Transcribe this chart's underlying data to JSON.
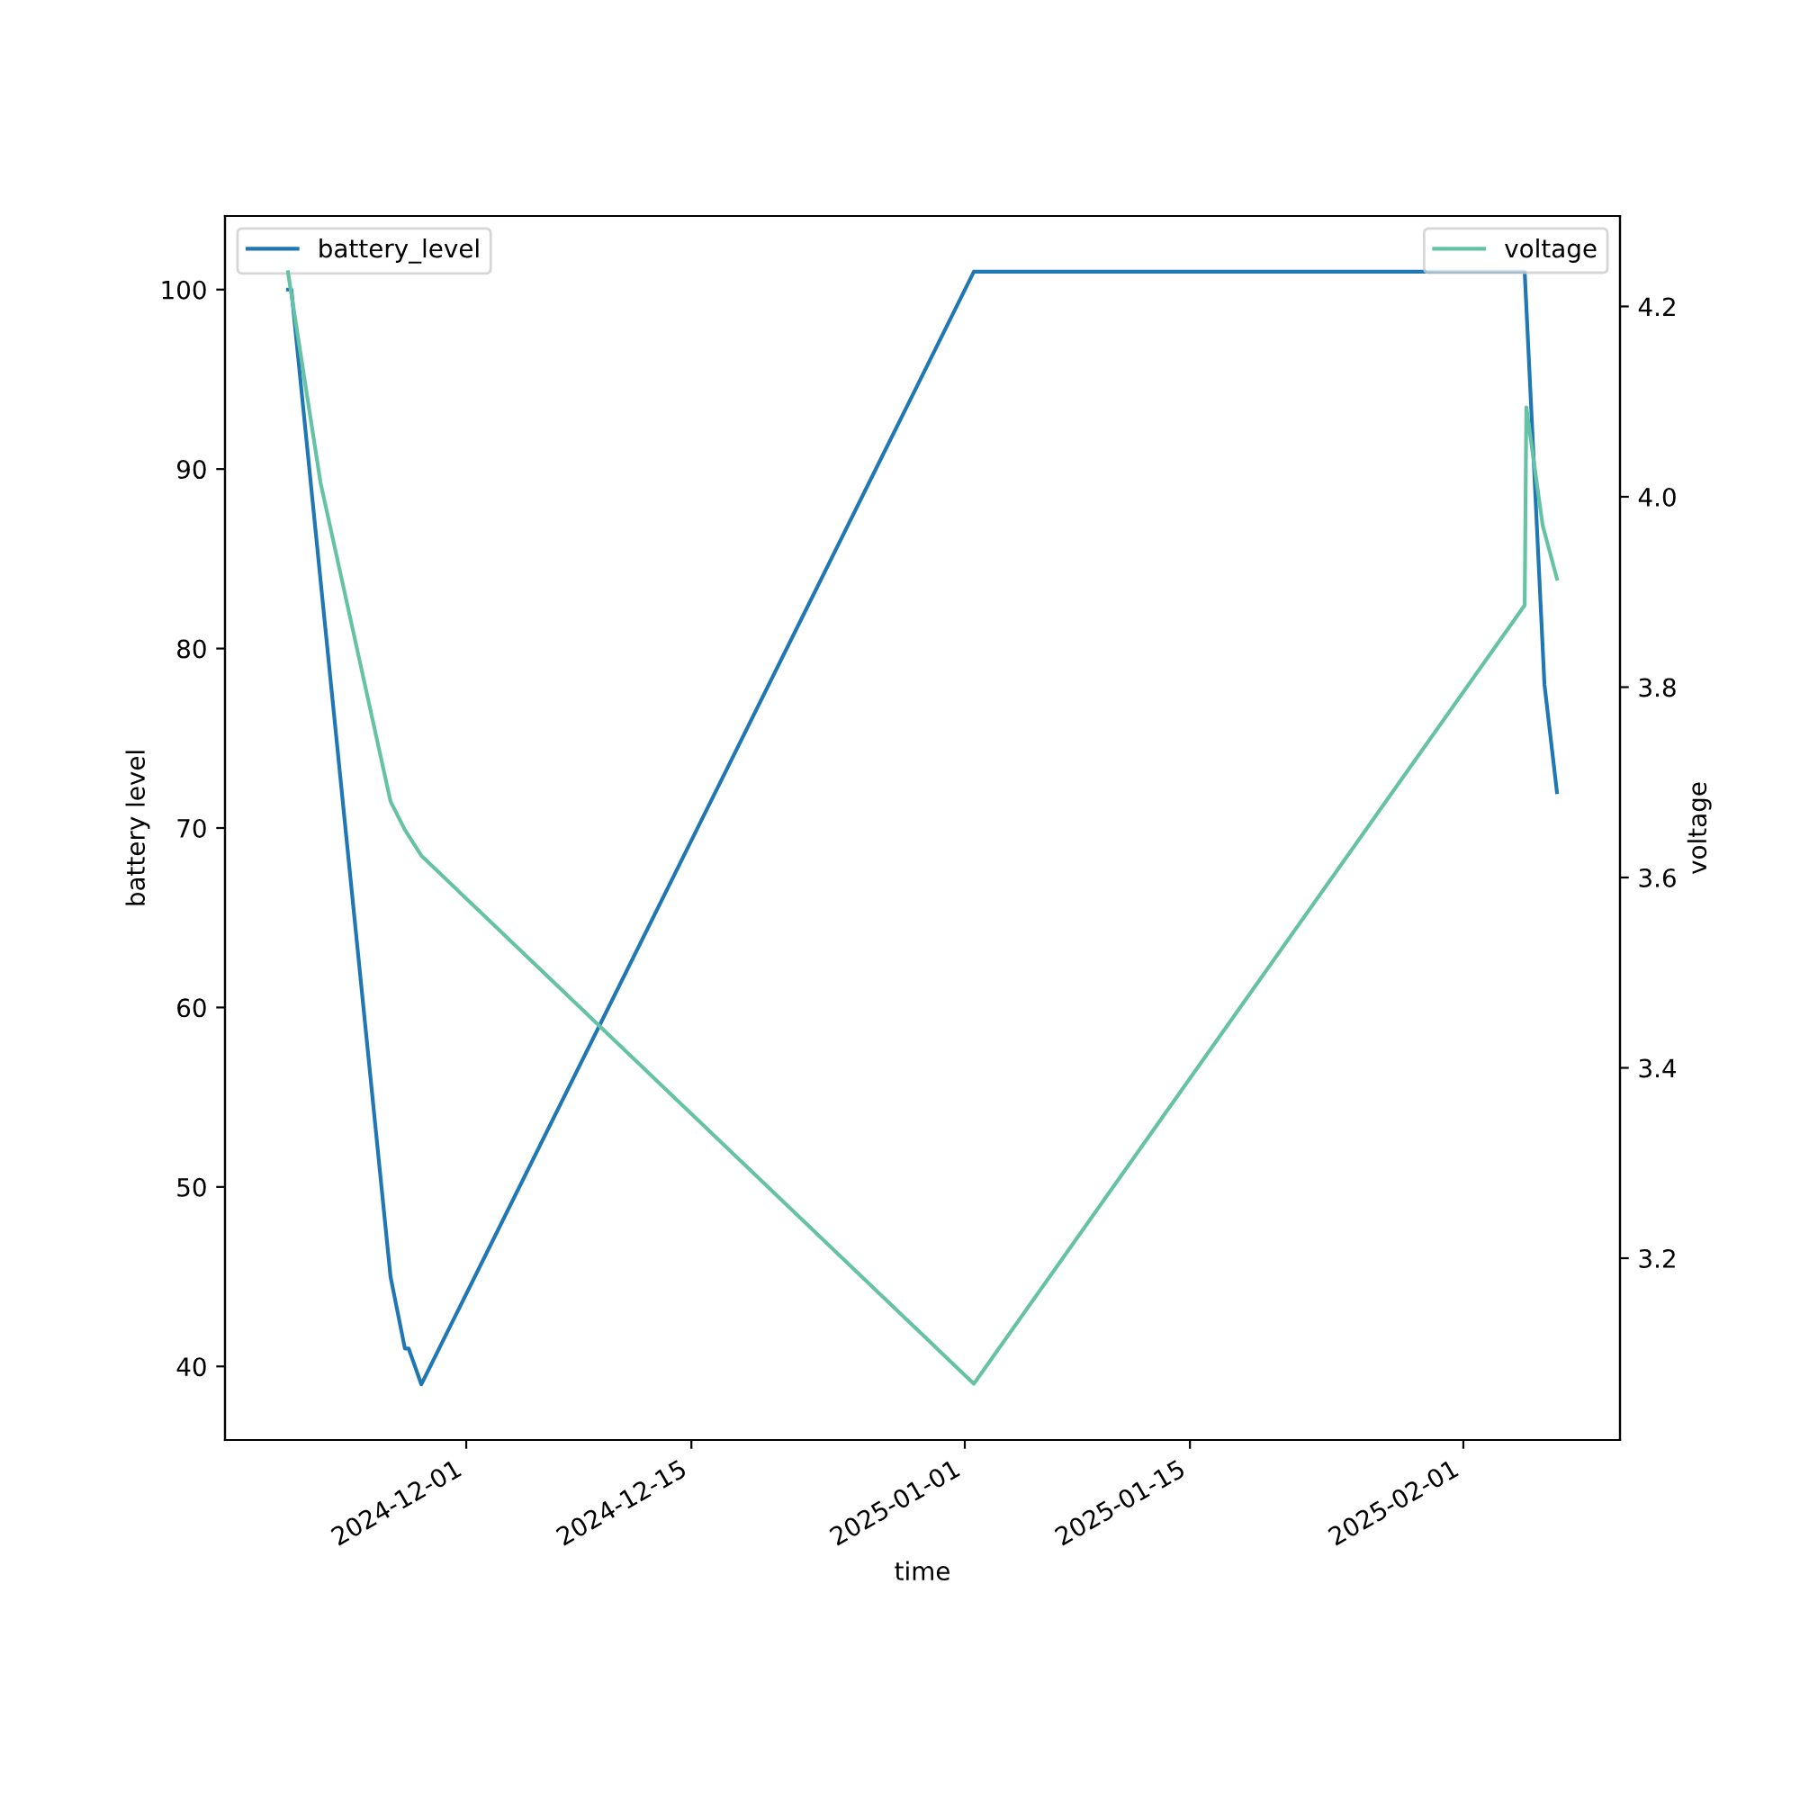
{
  "chart_data": {
    "type": "line",
    "xlabel": "time",
    "ylabel": "battery level",
    "y2label": "voltage",
    "xlim": [
      "2024-11-16T00:00",
      "2025-02-10T17:45"
    ],
    "xticks": [
      "2024-12-01",
      "2024-12-15",
      "2025-01-01",
      "2025-01-15",
      "2025-02-01"
    ],
    "ylim": [
      35.9,
      104.1
    ],
    "yticks": [
      40,
      50,
      60,
      70,
      80,
      90,
      100
    ],
    "y2lim": [
      3.009,
      4.295
    ],
    "y2ticks": [
      3.2,
      3.4,
      3.6,
      3.8,
      {
        "value": 4.0,
        "label": "4.0"
      },
      4.2
    ],
    "grid": false,
    "legend": "top",
    "marker": "none",
    "line_style": "solid",
    "series": [
      {
        "name": "battery_level",
        "color": "#1f77b4",
        "x": [
          "2024-11-19T22:00",
          "2024-11-20T03:00",
          "2024-11-26T07:00",
          "2024-11-27T04:30",
          "2024-11-27T10:00",
          "2024-11-28T05:00",
          "2025-01-01T13:30",
          "2025-02-04T19:30",
          "2025-02-06T01:00",
          "2025-02-06T19:40"
        ],
        "values": [
          100,
          100,
          45,
          41,
          41,
          39,
          101,
          101,
          78,
          72
        ]
      },
      {
        "name": "voltage",
        "color": "#66c2a5",
        "axis": "y2",
        "x": [
          "2024-11-19T22:00",
          "2024-11-21T22:30",
          "2024-11-26T07:00",
          "2024-11-27T04:30",
          "2024-11-28T05:00",
          "2025-01-01T13:30",
          "2025-02-04T19:30",
          "2025-02-04T22:00",
          "2025-02-05T22:20",
          "2025-02-06T19:40"
        ],
        "values": [
          4.236,
          4.015,
          3.68,
          3.65,
          3.623,
          3.068,
          3.886,
          4.094,
          3.97,
          3.914
        ]
      }
    ]
  }
}
